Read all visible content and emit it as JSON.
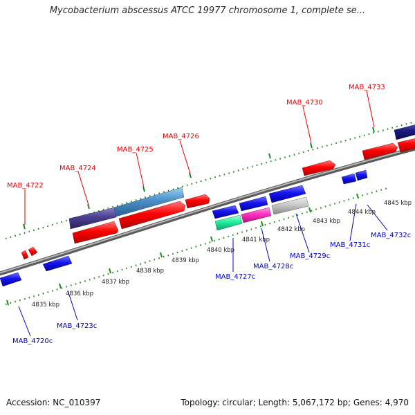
{
  "title": "Mycobacterium abscessus ATCC 19977 chromosome 1, complete se...",
  "footer": {
    "accession_label": "Accession:",
    "accession": "NC_010397",
    "topology_label": "Topology:",
    "topology": "circular",
    "length_label": "Length:",
    "length": "5,067,172 bp",
    "genes_label": "Genes:",
    "genes": "4,970"
  },
  "colors": {
    "forward_gene": "#ff0000",
    "reverse_gene": "#1010e0",
    "forward_label": "#ee0000",
    "reverse_label": "#0000cc",
    "tick": "#1a8a1a",
    "backbone": "#888888"
  },
  "kbp_ticks": [
    {
      "kbp": 4835,
      "label": "4835 kbp"
    },
    {
      "kbp": 4836,
      "label": "4836 kbp"
    },
    {
      "kbp": 4837,
      "label": "4837 kbp"
    },
    {
      "kbp": 4838,
      "label": "4838 kbp"
    },
    {
      "kbp": 4839,
      "label": "4839 kbp"
    },
    {
      "kbp": 4840,
      "label": "4840 kbp"
    },
    {
      "kbp": 4841,
      "label": "4841 kbp"
    },
    {
      "kbp": 4842,
      "label": "4842 kbp"
    },
    {
      "kbp": 4843,
      "label": "4843 kbp"
    },
    {
      "kbp": 4844,
      "label": "4844 kbp"
    },
    {
      "kbp": 4845,
      "label": "4845 kbp"
    }
  ],
  "forward_gene_labels": [
    {
      "id": "mab4722",
      "text": "MAB_4722"
    },
    {
      "id": "mab4724",
      "text": "MAB_4724"
    },
    {
      "id": "mab4725",
      "text": "MAB_4725"
    },
    {
      "id": "mab4726",
      "text": "MAB_4726"
    },
    {
      "id": "mab4730",
      "text": "MAB_4730"
    },
    {
      "id": "mab4733",
      "text": "MAB_4733"
    }
  ],
  "reverse_gene_labels": [
    {
      "id": "mab4720c",
      "text": "MAB_4720c"
    },
    {
      "id": "mab4723c",
      "text": "MAB_4723c"
    },
    {
      "id": "mab4727c",
      "text": "MAB_4727c"
    },
    {
      "id": "mab4728c",
      "text": "MAB_4728c"
    },
    {
      "id": "mab4729c",
      "text": "MAB_4729c"
    },
    {
      "id": "mab4731c",
      "text": "MAB_4731c"
    },
    {
      "id": "mab4732c",
      "text": "MAB_4732c"
    }
  ]
}
